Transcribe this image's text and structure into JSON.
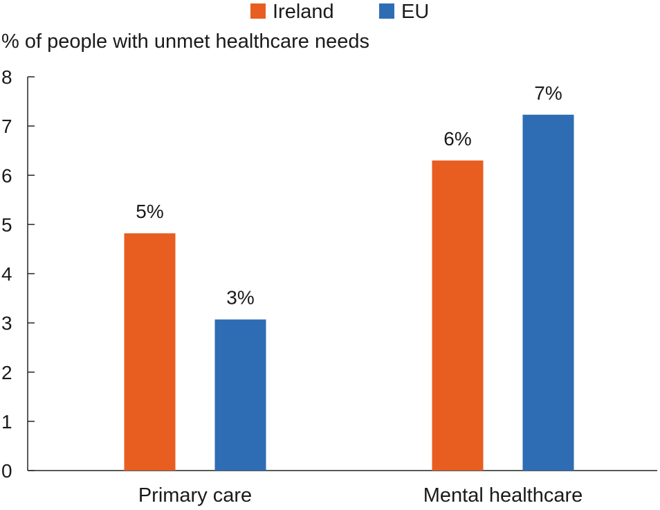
{
  "chart_data": {
    "type": "bar",
    "title": "",
    "ylabel": "% of people with unmet healthcare needs",
    "xlabel": "",
    "categories": [
      "Primary care",
      "Mental healthcare"
    ],
    "series": [
      {
        "name": "Ireland",
        "color": "#E85E20",
        "values": [
          4.82,
          6.3
        ],
        "labels": [
          "5%",
          "6%"
        ]
      },
      {
        "name": "EU",
        "color": "#2E6DB4",
        "values": [
          3.07,
          7.23
        ],
        "labels": [
          "3%",
          "7%"
        ]
      }
    ],
    "ylim": [
      0,
      8
    ],
    "yticks": [
      "0",
      "1",
      "2",
      "3",
      "4",
      "5",
      "6",
      "7",
      "8"
    ],
    "grid": false,
    "legend_position": "top-center"
  }
}
